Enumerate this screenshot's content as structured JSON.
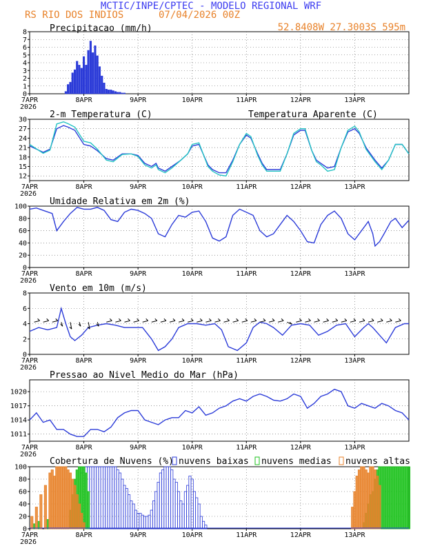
{
  "header": {
    "title": "MCTIC/INPE/CPTEC - MODELO REGIONAL WRF",
    "station": "RS RIO DOS INDIOS",
    "date": "07/04/2026 00Z",
    "coords": "52.8408W 27.3003S 595m"
  },
  "colors": {
    "title": "#3a3af0",
    "orange": "#e8822a",
    "cyan": "#22c2c2",
    "blue": "#2a3ad8",
    "green": "#1cc21c",
    "grid": "#555555",
    "axis": "#000000"
  },
  "days": [
    "7APR",
    "8APR",
    "9APR",
    "10APR",
    "11APR",
    "12APR",
    "13APR"
  ],
  "year": "2026",
  "chart_data": [
    {
      "type": "bar",
      "key": "precip",
      "title": "Precipitacao (mm/h)",
      "ylim": [
        0,
        8
      ],
      "yticks": [
        0,
        1,
        2,
        3,
        4,
        5,
        6,
        7,
        8
      ],
      "x_hours": [
        16,
        17,
        18,
        19,
        20,
        21,
        22,
        23,
        24,
        25,
        26,
        27,
        28,
        29,
        30,
        31,
        32,
        33,
        34,
        35,
        36,
        37,
        38,
        39,
        40,
        41,
        42
      ],
      "values": [
        0.3,
        1.2,
        1.5,
        2.7,
        3.1,
        4.2,
        3.7,
        3.3,
        4.8,
        3.7,
        5.6,
        6.8,
        5.3,
        6.2,
        4.9,
        3.5,
        2.3,
        1.4,
        0.6,
        0.5,
        0.5,
        0.4,
        0.3,
        0.2,
        0.2,
        0.1,
        0.1
      ]
    },
    {
      "type": "line",
      "key": "temp",
      "title": "2-m Temperatura (C)",
      "legend": "Temperatura Aparente (C)",
      "ylim": [
        10.5,
        30
      ],
      "yticks": [
        12,
        15,
        18,
        21,
        24,
        27,
        30
      ],
      "series": [
        {
          "name": "2-m Temperatura (C)",
          "color": "blue",
          "x": [
            0,
            6,
            9,
            12,
            15,
            17,
            20,
            24,
            27,
            30,
            34,
            37,
            41,
            45,
            48,
            51,
            54,
            56,
            57,
            60,
            63,
            67,
            70,
            72,
            75,
            79,
            81,
            84,
            87,
            90,
            93,
            96,
            98,
            101,
            103,
            105,
            108,
            111,
            114,
            117,
            120,
            122,
            125,
            127,
            129,
            132,
            135,
            138,
            141,
            144,
            146,
            149,
            151,
            153,
            156,
            159,
            162,
            165,
            168
          ],
          "values": [
            21.5,
            19.5,
            20.5,
            27,
            28,
            27.5,
            26.5,
            22,
            21.5,
            20,
            17.5,
            17,
            19,
            19,
            18.5,
            16,
            15,
            16,
            14.5,
            13.5,
            15,
            17,
            19,
            21.5,
            22,
            15.5,
            14,
            13,
            13,
            17,
            22,
            25,
            24,
            19,
            16,
            14,
            14,
            14,
            19,
            25,
            26.5,
            26.5,
            20,
            17,
            16,
            14.5,
            15,
            21,
            26,
            27,
            25.5,
            21,
            19,
            17,
            14.5,
            17,
            22,
            22,
            19
          ]
        },
        {
          "name": "Temperatura Aparente (C)",
          "color": "cyan",
          "x": [
            0,
            6,
            9,
            12,
            15,
            17,
            20,
            24,
            27,
            30,
            34,
            37,
            41,
            45,
            48,
            51,
            54,
            56,
            57,
            60,
            63,
            67,
            70,
            72,
            75,
            79,
            81,
            84,
            87,
            90,
            93,
            96,
            98,
            101,
            103,
            105,
            108,
            111,
            114,
            117,
            120,
            122,
            125,
            127,
            129,
            132,
            135,
            138,
            141,
            144,
            146,
            149,
            151,
            153,
            156,
            159,
            162,
            165,
            168
          ],
          "values": [
            22,
            19.2,
            20.2,
            28.5,
            29.2,
            28.6,
            27.5,
            23,
            22.5,
            20.5,
            17,
            16.5,
            18.8,
            19,
            18.2,
            15.5,
            14.5,
            15.5,
            14,
            13,
            14.5,
            17,
            19,
            22,
            22.5,
            15,
            13.5,
            12.3,
            12,
            16.5,
            22,
            25.5,
            24.5,
            18.5,
            15.5,
            13.5,
            13.5,
            13.5,
            19,
            25.5,
            27,
            27,
            20,
            16.5,
            15.5,
            13.5,
            14,
            21,
            26.5,
            27.8,
            26,
            20.5,
            18.5,
            16.5,
            14,
            17,
            22,
            22,
            19
          ]
        }
      ]
    },
    {
      "type": "line",
      "key": "rh",
      "title": "Umidade Relativa em 2m (%)",
      "ylim": [
        0,
        100
      ],
      "yticks": [
        0,
        20,
        40,
        60,
        80,
        100
      ],
      "series": [
        {
          "name": "Umidade Relativa em 2m (%)",
          "color": "blue",
          "x": [
            0,
            3,
            6,
            10,
            12,
            15,
            18,
            21,
            24,
            27,
            30,
            33,
            36,
            39,
            42,
            45,
            48,
            51,
            54,
            57,
            60,
            63,
            66,
            69,
            72,
            75,
            78,
            81,
            84,
            87,
            90,
            93,
            96,
            99,
            102,
            105,
            108,
            111,
            114,
            117,
            120,
            123,
            126,
            129,
            132,
            135,
            138,
            141,
            144,
            147,
            150,
            152,
            153,
            155,
            157,
            160,
            162,
            165,
            168
          ],
          "values": [
            95,
            97,
            93,
            88,
            60,
            75,
            88,
            98,
            95,
            95,
            98,
            93,
            78,
            75,
            90,
            95,
            93,
            88,
            80,
            55,
            50,
            70,
            85,
            82,
            90,
            92,
            75,
            48,
            43,
            50,
            85,
            95,
            90,
            85,
            60,
            50,
            55,
            70,
            85,
            75,
            60,
            42,
            40,
            70,
            85,
            92,
            80,
            55,
            45,
            60,
            75,
            55,
            35,
            42,
            55,
            75,
            80,
            65,
            77
          ]
        }
      ]
    },
    {
      "type": "line",
      "key": "wind",
      "title": "Vento em 10m (m/s)",
      "ylim": [
        0,
        8
      ],
      "yticks": [
        0,
        2,
        4,
        6,
        8
      ],
      "series": [
        {
          "name": "Vento em 10m (m/s)",
          "color": "blue",
          "x": [
            0,
            4,
            8,
            12,
            14,
            16,
            18,
            20,
            23,
            26,
            30,
            34,
            38,
            42,
            46,
            50,
            54,
            57,
            60,
            63,
            66,
            70,
            74,
            78,
            82,
            85,
            88,
            92,
            96,
            99,
            102,
            105,
            108,
            112,
            116,
            120,
            124,
            128,
            132,
            136,
            140,
            144,
            148,
            150,
            152,
            155,
            158,
            162,
            166,
            168
          ],
          "values": [
            3,
            3.5,
            3.2,
            3.5,
            6,
            4,
            2.3,
            1.8,
            2.5,
            3.5,
            3.8,
            4,
            3.8,
            3.5,
            3.5,
            3.5,
            2,
            0.5,
            1,
            2,
            3.5,
            4,
            4,
            3.8,
            4,
            3.2,
            1,
            0.5,
            1.5,
            3.5,
            4.2,
            4,
            3.5,
            2.5,
            3.8,
            4,
            3.8,
            2.5,
            3,
            3.8,
            4,
            2.3,
            3.5,
            4,
            3.5,
            2.5,
            1.5,
            3.5,
            4,
            4
          ]
        }
      ]
    },
    {
      "type": "line",
      "key": "mslp",
      "title": "Pressao ao Nivel Medio do Mar (hPa)",
      "ylim": [
        1009.5,
        1022.5
      ],
      "yticks": [
        1011,
        1014,
        1017,
        1020
      ],
      "series": [
        {
          "name": "Pressao ao Nivel Medio do Mar (hPa)",
          "color": "blue",
          "x": [
            0,
            3,
            6,
            9,
            12,
            15,
            18,
            21,
            24,
            27,
            30,
            33,
            36,
            39,
            42,
            45,
            48,
            51,
            54,
            57,
            60,
            63,
            66,
            69,
            72,
            75,
            78,
            81,
            84,
            87,
            90,
            93,
            96,
            99,
            102,
            105,
            108,
            111,
            114,
            117,
            120,
            123,
            126,
            129,
            132,
            135,
            138,
            141,
            144,
            147,
            150,
            153,
            156,
            159,
            162,
            165,
            168
          ],
          "values": [
            1014,
            1015.5,
            1013.5,
            1014,
            1012,
            1012,
            1011,
            1010.5,
            1010.5,
            1012,
            1012,
            1011.5,
            1012.5,
            1014.5,
            1015.5,
            1016,
            1016,
            1014,
            1013.5,
            1013,
            1014,
            1014.5,
            1014.5,
            1016,
            1015.5,
            1016.8,
            1015,
            1015.5,
            1016.5,
            1017,
            1018,
            1018.5,
            1018,
            1019,
            1019.5,
            1019,
            1018.2,
            1018,
            1018.5,
            1019.5,
            1019,
            1016.5,
            1017.5,
            1019,
            1019.5,
            1020.5,
            1020,
            1017,
            1016.5,
            1017.5,
            1017,
            1016.5,
            1017.5,
            1017,
            1016,
            1015.5,
            1014
          ]
        }
      ]
    },
    {
      "type": "bar",
      "key": "clouds",
      "title": "Cobertura de Nuvens (%)",
      "ylim": [
        0,
        100
      ],
      "yticks": [
        0,
        20,
        40,
        60,
        80,
        100
      ],
      "legend": [
        "nuvens baixas",
        "nuvens medias",
        "nuvens altas"
      ],
      "series": [
        {
          "name": "nuvens baixas",
          "color": "blue",
          "x": [
            23,
            24,
            25,
            26,
            27,
            28,
            29,
            30,
            31,
            32,
            33,
            34,
            35,
            36,
            37,
            38,
            39,
            40,
            41,
            42,
            43,
            44,
            45,
            46,
            47,
            48,
            49,
            50,
            51,
            52,
            53,
            54,
            55,
            56,
            57,
            58,
            59,
            60,
            61,
            62,
            63,
            64,
            65,
            66,
            67,
            68,
            69,
            70,
            71,
            72,
            73,
            74,
            75,
            76,
            77,
            78
          ],
          "values": [
            90,
            100,
            100,
            100,
            100,
            100,
            100,
            100,
            100,
            100,
            100,
            100,
            100,
            100,
            100,
            100,
            95,
            90,
            80,
            70,
            65,
            55,
            45,
            40,
            30,
            25,
            25,
            22,
            20,
            20,
            22,
            30,
            45,
            60,
            75,
            90,
            95,
            100,
            100,
            100,
            95,
            80,
            75,
            60,
            45,
            40,
            60,
            70,
            85,
            80,
            60,
            50,
            40,
            20,
            12,
            6
          ]
        },
        {
          "name": "nuvens medias",
          "color": "green",
          "x": [
            2,
            4,
            8,
            18,
            19,
            20,
            21,
            22,
            23,
            24,
            25,
            26,
            148,
            149,
            150,
            151,
            152,
            153,
            154,
            155,
            156,
            157,
            158,
            159,
            160,
            161,
            162,
            163,
            164,
            165,
            166,
            167,
            168
          ],
          "values": [
            8,
            12,
            15,
            30,
            55,
            80,
            95,
            100,
            100,
            100,
            90,
            60,
            10,
            25,
            40,
            55,
            60,
            80,
            95,
            100,
            100,
            100,
            100,
            100,
            100,
            100,
            100,
            100,
            100,
            100,
            100,
            100,
            100
          ]
        },
        {
          "name": "nuvens altas",
          "color": "orange",
          "x": [
            1,
            3,
            5,
            7,
            9,
            10,
            11,
            12,
            13,
            14,
            15,
            16,
            17,
            18,
            19,
            20,
            21,
            22,
            23,
            24,
            143,
            144,
            145,
            146,
            147,
            148,
            149,
            150,
            151,
            152,
            153,
            154,
            155
          ],
          "values": [
            20,
            35,
            55,
            70,
            90,
            95,
            85,
            100,
            100,
            100,
            100,
            100,
            95,
            90,
            80,
            70,
            55,
            40,
            25,
            10,
            35,
            60,
            85,
            95,
            100,
            100,
            95,
            90,
            100,
            100,
            95,
            85,
            70
          ]
        }
      ]
    }
  ]
}
